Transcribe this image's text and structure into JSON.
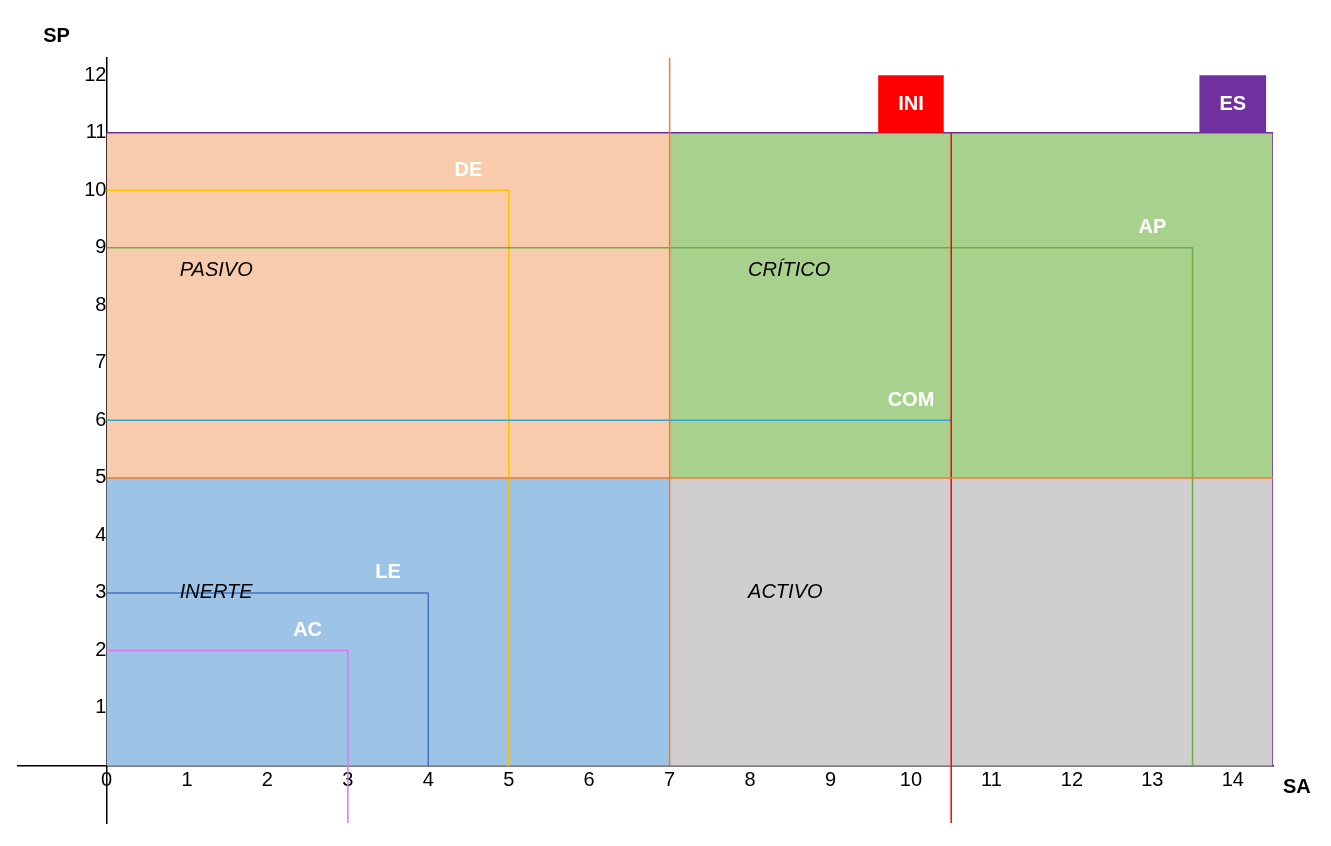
{
  "chart_data": {
    "type": "line",
    "xlabel": "SA",
    "ylabel": "SP",
    "xlim": [
      -1.1,
      14.5
    ],
    "ylim": [
      -1,
      12.3
    ],
    "xticks": [
      0,
      1,
      2,
      3,
      4,
      5,
      6,
      7,
      8,
      9,
      10,
      11,
      12,
      13,
      14
    ],
    "yticks": [
      1,
      2,
      3,
      4,
      5,
      6,
      7,
      8,
      9,
      10,
      11,
      12
    ],
    "grid": false,
    "legend": false,
    "marker": "none",
    "series": [
      {
        "type": "area",
        "name": "PASIVO",
        "color": "#f8cbad",
        "x": [
          0,
          7
        ],
        "values": [
          11,
          11
        ]
      },
      {
        "type": "area",
        "name": "INERTE",
        "color": "#9dc3e6",
        "x": [
          0,
          7
        ],
        "values": [
          5,
          5
        ]
      },
      {
        "type": "area",
        "name": "CRÍTICO",
        "color": "#a9d18e",
        "x": [
          7,
          14.5
        ],
        "values": [
          11,
          11
        ]
      },
      {
        "type": "area",
        "name": "ACTIVO",
        "color": "#d0cece",
        "x": [
          7,
          14.5
        ],
        "values": [
          5,
          5
        ]
      },
      {
        "type": "line",
        "name": "AC",
        "color": "#dd77ee",
        "x": [
          0,
          3,
          3
        ],
        "values": [
          2,
          2,
          -1
        ]
      },
      {
        "type": "line",
        "name": "LE",
        "color": "#4472c4",
        "x": [
          0,
          4,
          4
        ],
        "values": [
          3,
          3,
          0
        ]
      },
      {
        "type": "line",
        "name": "DE",
        "color": "#ffc000",
        "x": [
          0,
          5,
          5
        ],
        "values": [
          10,
          10,
          0
        ]
      },
      {
        "type": "line",
        "name": "COM",
        "color": "#2ea8d8",
        "x": [
          0,
          10.5
        ],
        "values": [
          6,
          6
        ]
      },
      {
        "type": "line",
        "name": "AP",
        "color": "#70ad47",
        "x": [
          0,
          13.5,
          13.5
        ],
        "values": [
          9,
          9,
          0
        ]
      },
      {
        "type": "line",
        "name": "ES",
        "color": "#7030a0",
        "x": [
          0,
          14.5,
          14.5
        ],
        "values": [
          11,
          11,
          0
        ]
      },
      {
        "type": "line",
        "name": "INI",
        "color": "#ff0000",
        "x": [
          10.5,
          10.5
        ],
        "values": [
          11,
          -1
        ]
      }
    ],
    "ref_lines": [
      {
        "axis": "x",
        "value": 7,
        "color": "#ed7d31"
      },
      {
        "axis": "y",
        "value": 5,
        "color": "#ed7d31"
      }
    ]
  }
}
